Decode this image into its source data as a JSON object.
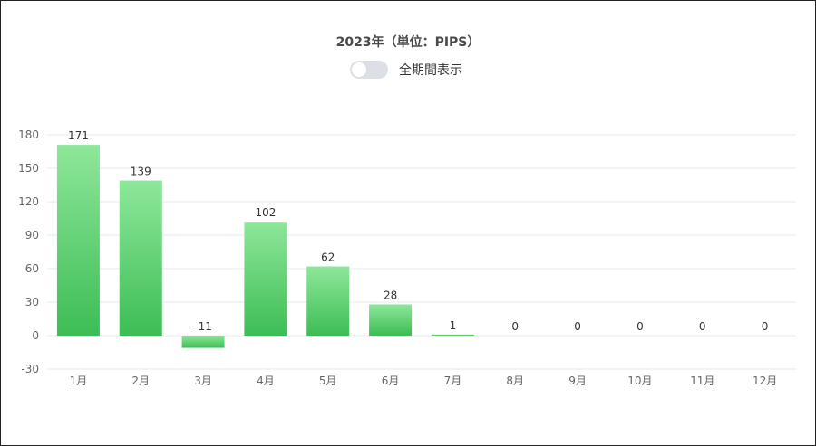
{
  "title": "2023年（単位：PIPS）",
  "toggle": {
    "label": "全期間表示",
    "on": false
  },
  "chart_data": {
    "type": "bar",
    "categories": [
      "1月",
      "2月",
      "3月",
      "4月",
      "5月",
      "6月",
      "7月",
      "8月",
      "9月",
      "10月",
      "11月",
      "12月"
    ],
    "values": [
      171,
      139,
      -11,
      102,
      62,
      28,
      1,
      0,
      0,
      0,
      0,
      0
    ],
    "yticks": [
      180,
      150,
      120,
      90,
      60,
      30,
      0,
      -30
    ],
    "ylim": [
      -30,
      180
    ],
    "grid": true,
    "colors": {
      "bar_top": "#8ee79a",
      "bar_bottom": "#3dbd55",
      "grid": "#e6e9ef"
    }
  }
}
